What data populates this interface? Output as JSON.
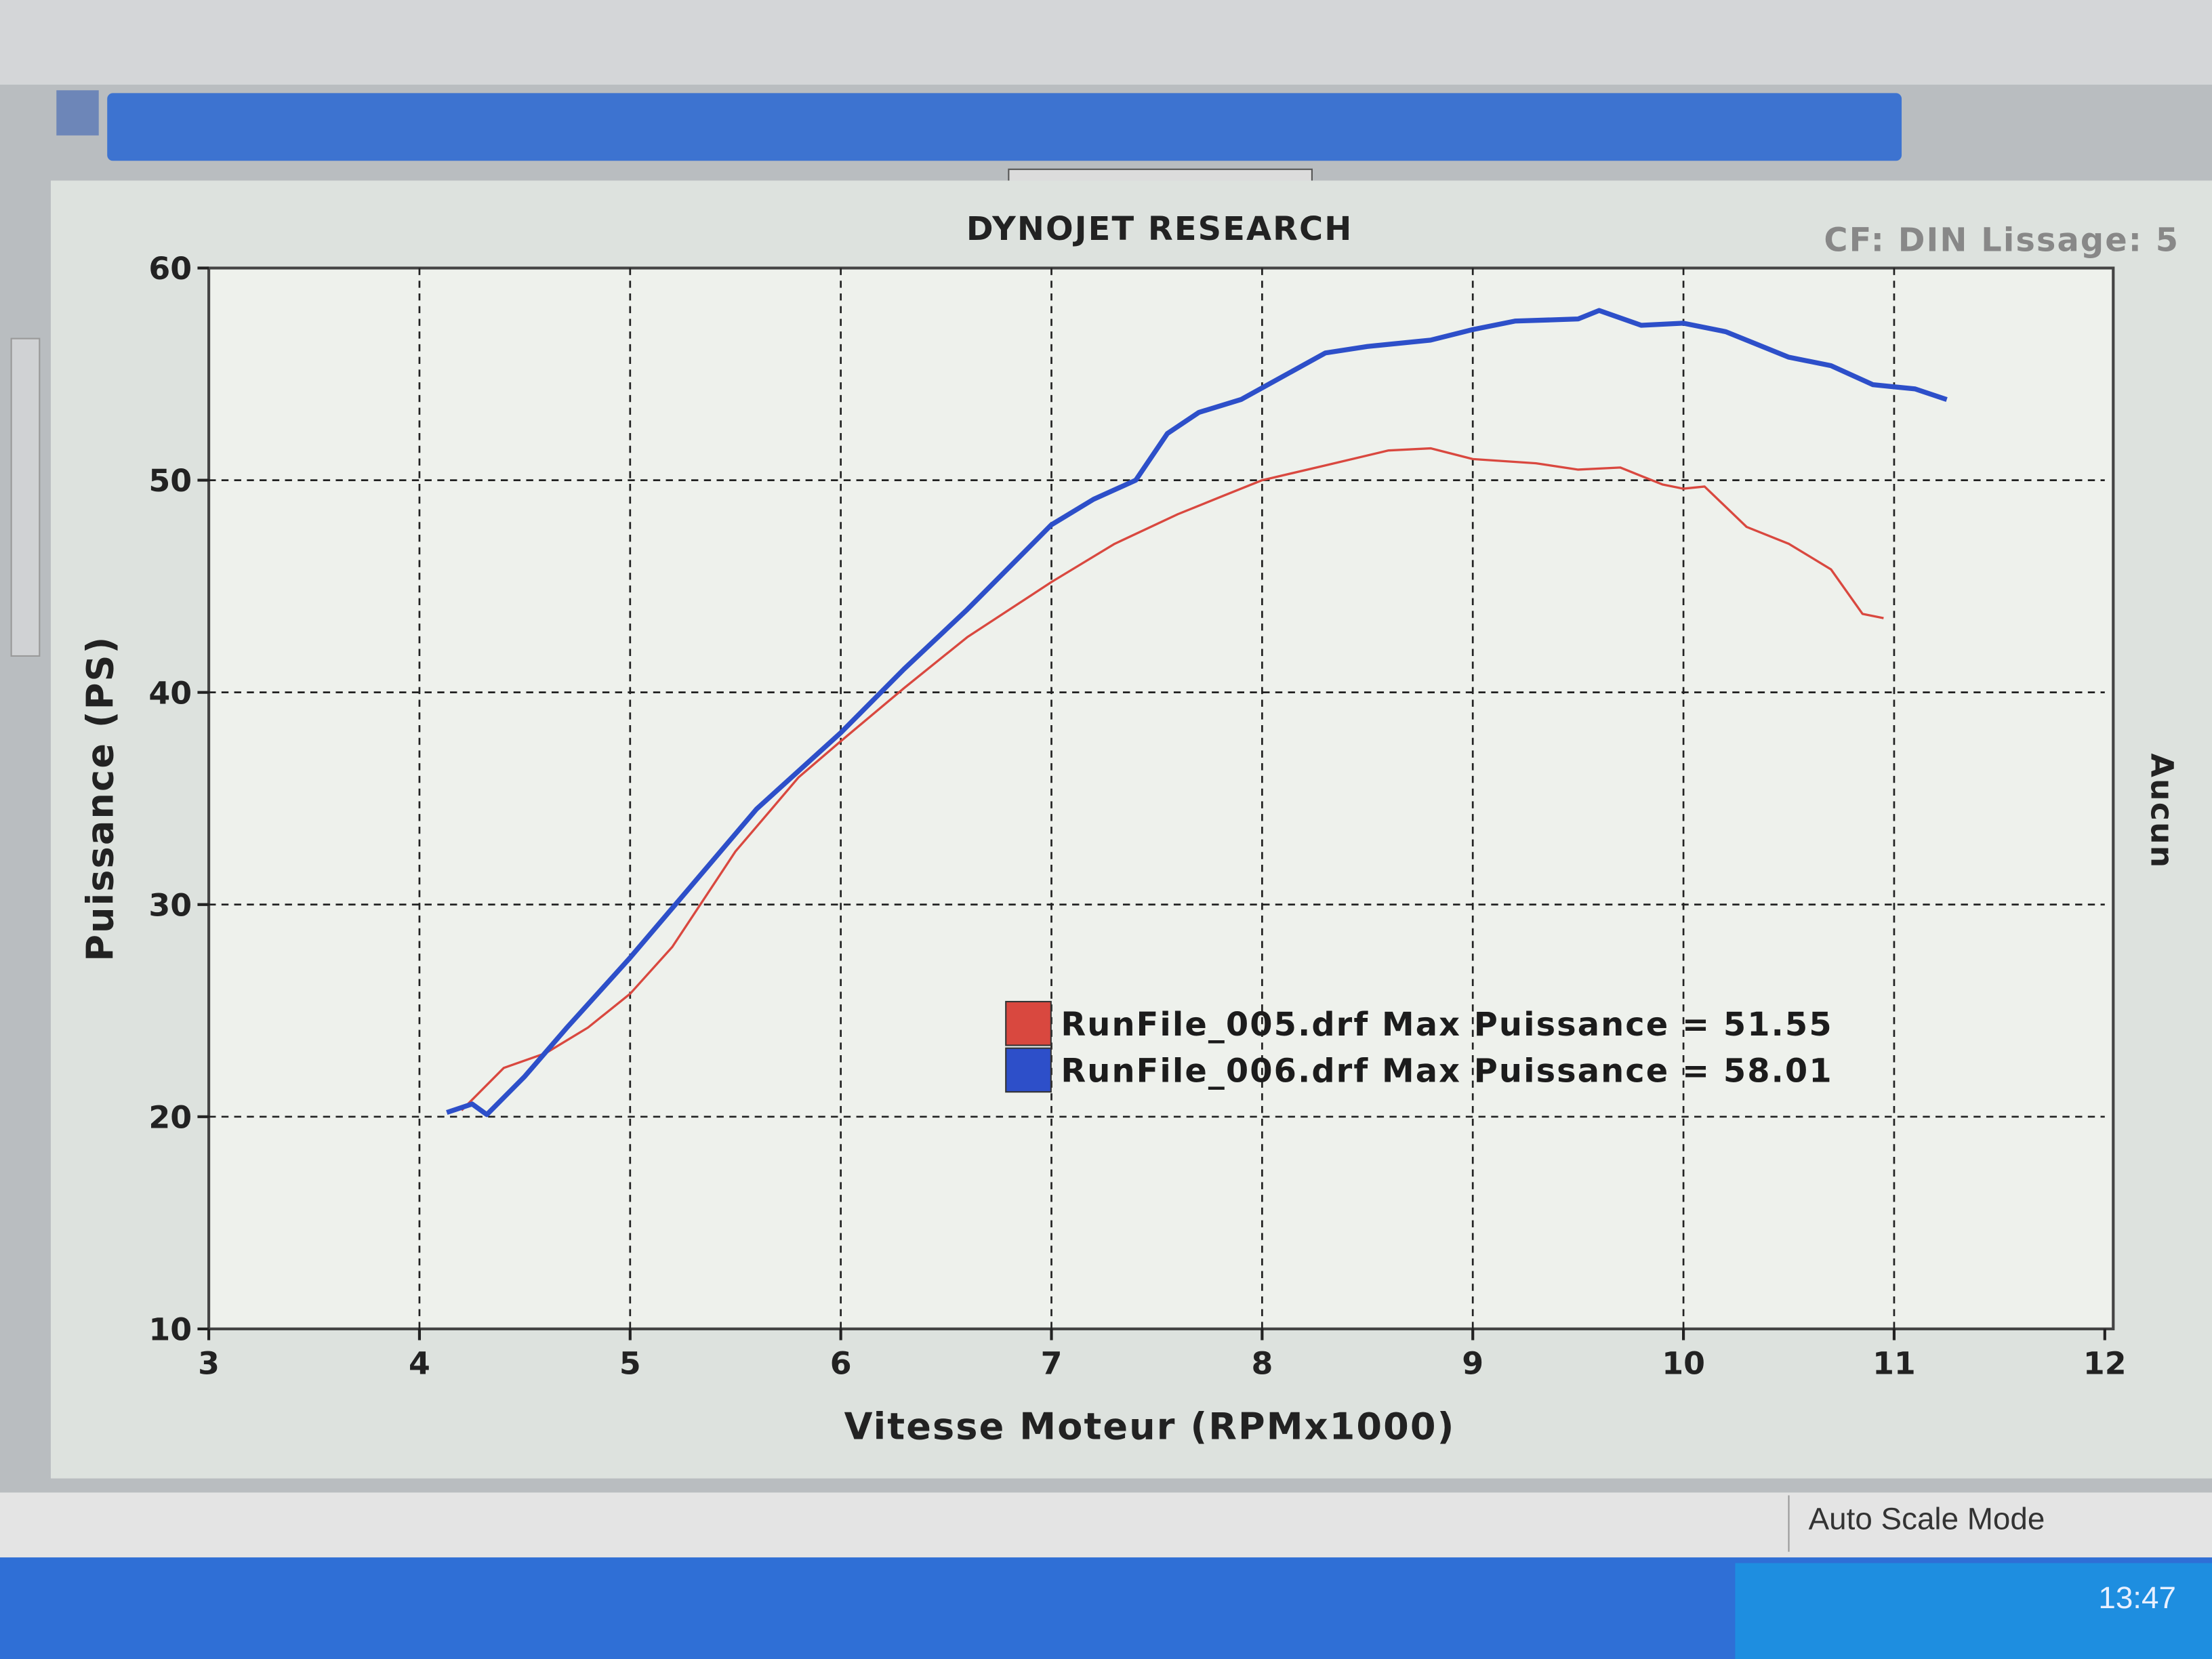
{
  "chart_data": {
    "type": "line",
    "title": "DYNOJET RESEARCH",
    "subtitle": "CF: DIN  Lissage: 5",
    "side_label": "Aucun",
    "x_label": "Vitesse Moteur (RPMx1000)",
    "y_label": "Puissance (PS)",
    "xlim": [
      3,
      12
    ],
    "xticks": [
      3,
      4,
      5,
      6,
      7,
      8,
      9,
      10,
      11,
      12
    ],
    "ylim": [
      10,
      60
    ],
    "yticks": [
      10,
      20,
      30,
      40,
      50,
      60
    ],
    "grid": true,
    "series": [
      {
        "name": "RunFile_005.drf Max Puissance = 51.55",
        "color": "#d9483f",
        "x": [
          4.2,
          4.4,
          4.6,
          4.8,
          5.0,
          5.2,
          5.5,
          5.8,
          6.0,
          6.3,
          6.6,
          7.0,
          7.3,
          7.6,
          7.8,
          8.0,
          8.3,
          8.6,
          8.8,
          9.0,
          9.3,
          9.5,
          9.7,
          9.9,
          10.0,
          10.1,
          10.3,
          10.5,
          10.7,
          10.85,
          10.95
        ],
        "values": [
          20.3,
          22.3,
          23.0,
          24.2,
          25.8,
          28.0,
          32.5,
          36.0,
          37.7,
          40.2,
          42.6,
          45.2,
          47.0,
          48.4,
          49.2,
          50.0,
          50.7,
          51.4,
          51.5,
          51.0,
          50.8,
          50.5,
          50.6,
          49.8,
          49.6,
          49.7,
          47.8,
          47.0,
          45.8,
          43.7,
          43.5
        ]
      },
      {
        "name": "RunFile_006.drf Max Puissance = 58.01",
        "color": "#2d4fc9",
        "x": [
          4.13,
          4.25,
          4.32,
          4.5,
          4.7,
          5.0,
          5.3,
          5.6,
          6.0,
          6.3,
          6.6,
          7.0,
          7.2,
          7.4,
          7.55,
          7.7,
          7.9,
          8.1,
          8.3,
          8.5,
          8.8,
          9.0,
          9.2,
          9.5,
          9.6,
          9.8,
          10.0,
          10.2,
          10.5,
          10.7,
          10.9,
          11.1,
          11.25
        ],
        "values": [
          20.2,
          20.6,
          20.1,
          21.9,
          24.2,
          27.5,
          31.0,
          34.5,
          38.1,
          41.1,
          43.9,
          47.9,
          49.1,
          50.0,
          52.2,
          53.2,
          53.8,
          54.9,
          56.0,
          56.3,
          56.6,
          57.1,
          57.5,
          57.6,
          58.0,
          57.3,
          57.4,
          57.0,
          55.8,
          55.4,
          54.5,
          54.3,
          53.8
        ]
      }
    ]
  },
  "status_bar": {
    "mode": "Auto Scale Mode",
    "clock": "13:47"
  }
}
